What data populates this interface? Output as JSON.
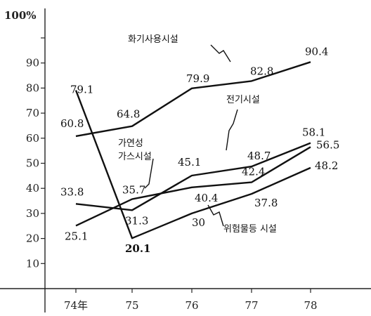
{
  "chart_data": {
    "type": "line",
    "y_unit_label": "100%",
    "x": [
      "74年",
      "75",
      "76",
      "77",
      "78"
    ],
    "ylim": [
      0,
      100
    ],
    "y_ticks": [
      "90",
      "80",
      "70",
      "60",
      "50",
      "40",
      "30",
      "20",
      "10"
    ],
    "grid": false,
    "series": [
      {
        "key": "fire",
        "name": "화기사용시설",
        "values": [
          60.8,
          64.8,
          79.9,
          82.8,
          90.4
        ],
        "labels": [
          "60.8",
          "64.8",
          "79.9",
          "82.8",
          "90.4"
        ]
      },
      {
        "key": "electric",
        "name": "전기시설",
        "values": [
          33.8,
          31.3,
          45.1,
          48.7,
          58.1
        ],
        "labels": [
          "33.8",
          "31.3",
          "45.1",
          "48.7",
          "58.1"
        ]
      },
      {
        "key": "gas",
        "name": "가연성 가스시설",
        "values": [
          25.1,
          35.7,
          40.4,
          42.4,
          56.5
        ],
        "labels": [
          "25.1",
          "35.7",
          "40.4",
          "42.4",
          "56.5"
        ]
      },
      {
        "key": "hazard",
        "name": "위험물등 시설",
        "values": [
          79.1,
          20.1,
          30.0,
          37.8,
          48.2
        ],
        "labels": [
          "79.1",
          "20.1",
          "30",
          "37.8",
          "48.2"
        ]
      }
    ]
  }
}
